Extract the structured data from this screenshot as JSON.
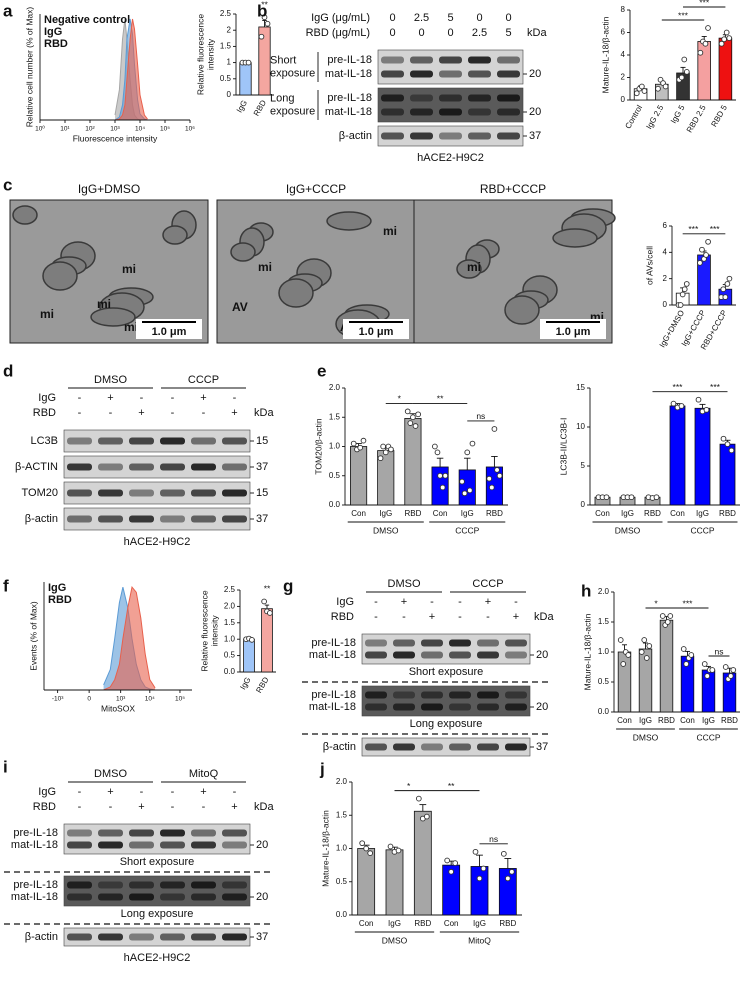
{
  "chart_data": [
    {
      "type": "area",
      "panel": "a",
      "xscale": "log",
      "ylabel": "Relative cell number (% of Max)",
      "xlabel": "Fluorescence intensity",
      "legend": "upper left",
      "x": [
        1000,
        1500,
        2000,
        2500,
        3000,
        4000,
        5000,
        6000,
        8000,
        10000,
        15000,
        20000
      ],
      "series": [
        {
          "name": "Negative control",
          "color": "#a6a6a6",
          "values": [
            5,
            30,
            80,
            100,
            80,
            40,
            15,
            5,
            1,
            0,
            0,
            0
          ]
        },
        {
          "name": "IgG",
          "color": "#5b9bd5",
          "values": [
            0,
            3,
            15,
            40,
            80,
            100,
            85,
            55,
            20,
            6,
            1,
            0
          ]
        },
        {
          "name": "RBD",
          "color": "#e8604c",
          "values": [
            0,
            1,
            5,
            15,
            40,
            80,
            100,
            90,
            55,
            25,
            5,
            1
          ]
        }
      ],
      "xlim": [
        1,
        1000000
      ],
      "xticks": [
        {
          "value": 1,
          "label": "10⁰"
        },
        {
          "value": 10,
          "label": "10¹"
        },
        {
          "value": 100,
          "label": "10²"
        },
        {
          "value": 1000,
          "label": "10³"
        },
        {
          "value": 10000,
          "label": "10⁴"
        },
        {
          "value": 100000,
          "label": "10⁵"
        },
        {
          "value": 1000000,
          "label": "10⁶"
        }
      ],
      "ylim": [
        0,
        105
      ]
    },
    {
      "type": "bar",
      "ylabel": [
        "Relative fluorescence",
        "intensity"
      ],
      "categories": [
        "IgG",
        "RBD"
      ],
      "values": [
        1.0,
        2.1
      ],
      "errors": [
        0.02,
        0.2
      ],
      "points": [
        [
          1,
          1,
          1
        ],
        [
          1.8,
          2.4,
          2.2
        ]
      ],
      "colors": [
        "#9fc5f8",
        "#f4a6a0"
      ],
      "ylim": [
        0,
        2.5
      ],
      "yticks": [
        0,
        0.5,
        1,
        1.5,
        2,
        2.5
      ],
      "significance": [
        {
          "label": "**",
          "between": [
            1,
            1
          ]
        }
      ]
    },
    {
      "type": "bar",
      "ylabel": "Mature-IL-18/β-actin",
      "categories": [
        "Control",
        "IgG 2.5",
        "IgG 5",
        "RBD 2.5",
        "RBD 5"
      ],
      "values": [
        1.0,
        1.4,
        2.4,
        5.2,
        5.5
      ],
      "errors": [
        0.25,
        0.3,
        0.5,
        0.45,
        0.3
      ],
      "points": [
        [
          0.6,
          1.0,
          1.2,
          0.8
        ],
        [
          1.0,
          1.8,
          1.5,
          1.2
        ],
        [
          1.8,
          2.0,
          3.6,
          2.5
        ],
        [
          4.2,
          5.2,
          5.0,
          6.4
        ],
        [
          5.0,
          5.4,
          6.0,
          5.5
        ]
      ],
      "colors": [
        "#ffffff",
        "#bfbfbf",
        "#333333",
        "#f4a0a0",
        "#ee1111"
      ],
      "ylim": [
        0,
        8
      ],
      "yticks": [
        0,
        2,
        4,
        6,
        8
      ],
      "significance": [
        {
          "label": "***",
          "between": [
            1,
            3
          ]
        },
        {
          "label": "***",
          "between": [
            2,
            4
          ]
        }
      ]
    },
    {
      "type": "bar",
      "ylabel": "of AVs/cell",
      "categories": [
        "IgG+DMSO",
        "IgG+CCCP",
        "RBD+CCCP"
      ],
      "values": [
        0.9,
        3.8,
        1.2
      ],
      "errors": [
        0.4,
        0.3,
        0.35
      ],
      "points": [
        [
          0,
          0,
          0.8,
          1.2,
          1.6
        ],
        [
          3.2,
          4.2,
          3.5,
          3.8,
          4.8
        ],
        [
          0.6,
          1.2,
          0.6,
          1.6,
          2.0
        ]
      ],
      "colors": [
        "#ffffff",
        "#1a1aff",
        "#1a1aff"
      ],
      "ylim": [
        0,
        6
      ],
      "yticks": [
        0,
        2,
        4,
        6
      ],
      "significance": [
        {
          "label": "***",
          "between": [
            0,
            1
          ]
        },
        {
          "label": "***",
          "between": [
            1,
            2
          ]
        }
      ]
    },
    {
      "type": "bar",
      "panel": "e",
      "ylabel": "TOM20/β-actin",
      "categories": [
        "Con",
        "IgG",
        "RBD",
        "Con",
        "IgG",
        "RBD"
      ],
      "values": [
        1.0,
        0.93,
        1.48,
        0.65,
        0.6,
        0.65
      ],
      "errors": [
        0.05,
        0.07,
        0.08,
        0.15,
        0.2,
        0.18
      ],
      "points": [
        [
          1.05,
          0.95,
          0.98,
          1.1
        ],
        [
          0.8,
          1.0,
          0.9,
          1.0,
          0.95
        ],
        [
          1.6,
          1.4,
          1.5,
          1.35,
          1.55
        ],
        [
          1.0,
          0.9,
          0.5,
          0.3,
          0.5
        ],
        [
          0.4,
          0.2,
          0.9,
          0.25,
          1.05
        ],
        [
          0.45,
          0.3,
          1.3,
          0.6,
          0.5
        ]
      ],
      "colors": [
        "#a6a6a6",
        "#a6a6a6",
        "#a6a6a6",
        "#0000ff",
        "#0000ff",
        "#0000ff"
      ],
      "ylim": [
        0,
        2.0
      ],
      "yticks": [
        {
          "value": 0,
          "label": "0.0"
        },
        0.5,
        {
          "value": 1,
          "label": "1.0"
        },
        1.5,
        {
          "value": 2,
          "label": "2.0"
        }
      ],
      "groups": [
        {
          "label": "DMSO",
          "size": 3
        },
        {
          "label": "CCCP",
          "size": 3
        }
      ],
      "significance": [
        {
          "label": "*",
          "between": [
            1,
            2
          ]
        },
        {
          "label": "**",
          "between": [
            2,
            4
          ]
        },
        {
          "label": "ns",
          "between": [
            4,
            5
          ]
        }
      ]
    },
    {
      "type": "bar",
      "ylabel": "LC3B-II/LC3B-I",
      "categories": [
        "Con",
        "IgG",
        "RBD",
        "Con",
        "IgG",
        "RBD"
      ],
      "values": [
        1.0,
        1.0,
        1.0,
        12.7,
        12.4,
        7.8
      ],
      "errors": [
        0.1,
        0.1,
        0.1,
        0.3,
        0.5,
        0.5
      ],
      "points": [
        [
          1,
          1,
          1
        ],
        [
          1,
          1,
          1
        ],
        [
          1,
          0.9,
          1
        ],
        [
          13,
          12.5,
          12.7
        ],
        [
          13.5,
          12,
          12.2
        ],
        [
          8.5,
          7.8,
          7.0
        ]
      ],
      "colors": [
        "#a6a6a6",
        "#a6a6a6",
        "#a6a6a6",
        "#0000ff",
        "#0000ff",
        "#0000ff"
      ],
      "ylim": [
        0,
        15
      ],
      "yticks": [
        0,
        5,
        10,
        15
      ],
      "groups": [
        {
          "label": "DMSO",
          "size": 3
        },
        {
          "label": "CCCP",
          "size": 3
        }
      ],
      "significance": [
        {
          "label": "***",
          "between": [
            2,
            4
          ]
        },
        {
          "label": "***",
          "between": [
            4,
            5
          ]
        }
      ]
    },
    {
      "type": "area",
      "panel": "f",
      "xscale": "symlog",
      "ylabel": "Events (% of Max)",
      "xlabel": "MitoSOX",
      "legend": "upper left",
      "x": [
        200,
        400,
        600,
        900,
        1200,
        1800,
        2500,
        3500,
        5000,
        7000,
        10000,
        15000
      ],
      "series": [
        {
          "name": "IgG",
          "color": "#5b9bd5",
          "values": [
            5,
            20,
            50,
            85,
            100,
            80,
            50,
            25,
            10,
            3,
            1,
            0
          ]
        },
        {
          "name": "RBD",
          "color": "#e8604c",
          "values": [
            0,
            3,
            10,
            25,
            50,
            80,
            100,
            95,
            70,
            35,
            10,
            2
          ]
        }
      ],
      "xlim": [
        -3000,
        250000
      ],
      "xticks": [
        {
          "value": -1000,
          "label": "-10³"
        },
        0,
        {
          "value": 1000,
          "label": "10³"
        },
        {
          "value": 10000,
          "label": "10⁴"
        },
        {
          "value": 100000,
          "label": "10⁵"
        }
      ],
      "ylim": [
        0,
        105
      ]
    },
    {
      "type": "bar",
      "ylabel": [
        "Relative fluorescence",
        "intensity"
      ],
      "categories": [
        "IgG",
        "RBD"
      ],
      "values": [
        1.0,
        1.93
      ],
      "errors": [
        0.01,
        0.11
      ],
      "points": [
        [
          1,
          1.02,
          0.98
        ],
        [
          2.15,
          1.85,
          1.8
        ]
      ],
      "colors": [
        "#9fc5f8",
        "#f4a6a0"
      ],
      "ylim": [
        0,
        2.5
      ],
      "yticks": [
        {
          "value": 0,
          "label": "0.0"
        },
        0.5,
        {
          "value": 1,
          "label": "1.0"
        },
        1.5,
        {
          "value": 2,
          "label": "2.0"
        },
        2.5
      ],
      "significance": [
        {
          "label": "**",
          "between": [
            1,
            1
          ]
        }
      ]
    },
    {
      "type": "bar",
      "panel": "h",
      "ylabel": "Mature-IL-18/β-actin",
      "categories": [
        "Con",
        "IgG",
        "RBD",
        "Con",
        "IgG",
        "RBD"
      ],
      "values": [
        1.0,
        1.05,
        1.53,
        0.93,
        0.7,
        0.65
      ],
      "errors": [
        0.12,
        0.1,
        0.06,
        0.08,
        0.06,
        0.08
      ],
      "points": [
        [
          1.2,
          0.8,
          1.0,
          0.95
        ],
        [
          1.0,
          1.2,
          0.9,
          1.1
        ],
        [
          1.6,
          1.45,
          1.5,
          1.6
        ],
        [
          1.05,
          0.8,
          0.9,
          0.95
        ],
        [
          0.8,
          0.6,
          0.7,
          0.7
        ],
        [
          0.75,
          0.55,
          0.6,
          0.7
        ]
      ],
      "colors": [
        "#a6a6a6",
        "#a6a6a6",
        "#a6a6a6",
        "#0000ff",
        "#0000ff",
        "#0000ff"
      ],
      "ylim": [
        0,
        2.0
      ],
      "yticks": [
        {
          "value": 0,
          "label": "0.0"
        },
        0.5,
        {
          "value": 1,
          "label": "1.0"
        },
        1.5,
        {
          "value": 2,
          "label": "2.0"
        }
      ],
      "groups": [
        {
          "label": "DMSO",
          "size": 3
        },
        {
          "label": "CCCP",
          "size": 3
        }
      ],
      "significance": [
        {
          "label": "*",
          "between": [
            1,
            2
          ]
        },
        {
          "label": "***",
          "between": [
            2,
            4
          ]
        },
        {
          "label": "ns",
          "between": [
            4,
            5
          ]
        }
      ]
    },
    {
      "type": "bar",
      "panel": "j",
      "ylabel": "Mature-IL-18/β-actin",
      "categories": [
        "Con",
        "IgG",
        "RBD",
        "Con",
        "IgG",
        "RBD"
      ],
      "values": [
        1.0,
        0.98,
        1.56,
        0.75,
        0.73,
        0.7
      ],
      "errors": [
        0.05,
        0.04,
        0.1,
        0.06,
        0.17,
        0.15
      ],
      "points": [
        [
          1.08,
          1.0,
          0.93
        ],
        [
          1.03,
          0.95,
          0.97
        ],
        [
          1.75,
          1.45,
          1.48
        ],
        [
          0.82,
          0.65,
          0.78
        ],
        [
          0.95,
          0.55,
          0.7
        ],
        [
          0.92,
          0.55,
          0.65
        ]
      ],
      "colors": [
        "#a6a6a6",
        "#a6a6a6",
        "#a6a6a6",
        "#0000ff",
        "#0000ff",
        "#0000ff"
      ],
      "ylim": [
        0,
        2.0
      ],
      "yticks": [
        {
          "value": 0,
          "label": "0.0"
        },
        0.5,
        {
          "value": 1,
          "label": "1.0"
        },
        1.5,
        {
          "value": 2,
          "label": "2.0"
        }
      ],
      "groups": [
        {
          "label": "DMSO",
          "size": 3
        },
        {
          "label": "MitoQ",
          "size": 3
        }
      ],
      "significance": [
        {
          "label": "*",
          "between": [
            1,
            2
          ]
        },
        {
          "label": "**",
          "between": [
            2,
            4
          ]
        },
        {
          "label": "ns",
          "between": [
            4,
            5
          ]
        }
      ]
    }
  ],
  "blots": [
    {
      "panel": "b",
      "conditions": [
        {
          "label": "IgG (μg/mL)",
          "values": [
            "0",
            "2.5",
            "5",
            "0",
            "0"
          ]
        },
        {
          "label": "RBD (μg/mL)",
          "values": [
            "0",
            "0",
            "0",
            "2.5",
            "5"
          ]
        }
      ],
      "unit": "kDa",
      "rows": [
        {
          "group": [
            "Short",
            "exposure"
          ],
          "bands": [
            "pre-IL-18",
            "mat-IL-18"
          ],
          "marker": "20"
        },
        {
          "group": [
            "Long",
            "exposure"
          ],
          "bands": [
            "pre-IL-18",
            "mat-IL-18"
          ],
          "marker": "20"
        },
        {
          "bands": [
            "β-actin"
          ],
          "marker": "37"
        }
      ],
      "caption": "hACE2-H9C2"
    },
    {
      "panel": "d",
      "headers": [
        "DMSO",
        "CCCP"
      ],
      "conditions": [
        {
          "label": "IgG",
          "values": [
            "-",
            "+",
            "-",
            "-",
            "+",
            "-"
          ]
        },
        {
          "label": "RBD",
          "values": [
            "-",
            "-",
            "+",
            "-",
            "-",
            "+"
          ]
        }
      ],
      "unit": "kDa",
      "rows": [
        {
          "bands": [
            "LC3B"
          ],
          "marker": "15"
        },
        {
          "bands": [
            "β-ACTIN"
          ],
          "marker": "37"
        },
        {
          "bands": [
            "TOM20"
          ],
          "marker": "15"
        },
        {
          "bands": [
            "β-actin"
          ],
          "marker": "37"
        }
      ],
      "caption": "hACE2-H9C2"
    },
    {
      "panel": "g",
      "headers": [
        "DMSO",
        "CCCP"
      ],
      "conditions": [
        {
          "label": "IgG",
          "values": [
            "-",
            "+",
            "-",
            "-",
            "+",
            "-"
          ]
        },
        {
          "label": "RBD",
          "values": [
            "-",
            "-",
            "+",
            "-",
            "-",
            "+"
          ]
        }
      ],
      "unit": "kDa",
      "rows": [
        {
          "bands": [
            "pre-IL-18",
            "mat-IL-18"
          ],
          "marker": "20",
          "note": "Short exposure"
        },
        {
          "bands": [
            "pre-IL-18",
            "mat-IL-18"
          ],
          "marker": "20",
          "note": "Long exposure"
        },
        {
          "bands": [
            "β-actin"
          ],
          "marker": "37"
        }
      ]
    },
    {
      "panel": "i",
      "headers": [
        "DMSO",
        "MitoQ"
      ],
      "conditions": [
        {
          "label": "IgG",
          "values": [
            "-",
            "+",
            "-",
            "-",
            "+",
            "-"
          ]
        },
        {
          "label": "RBD",
          "values": [
            "-",
            "-",
            "+",
            "-",
            "-",
            "+"
          ]
        }
      ],
      "unit": "kDa",
      "rows": [
        {
          "bands": [
            "pre-IL-18",
            "mat-IL-18"
          ],
          "marker": "20",
          "note": "Short exposure"
        },
        {
          "bands": [
            "pre-IL-18",
            "mat-IL-18"
          ],
          "marker": "20",
          "note": "Long exposure"
        },
        {
          "bands": [
            "β-actin"
          ],
          "marker": "37"
        }
      ],
      "caption": "hACE2-H9C2"
    }
  ],
  "micrographs": {
    "panel": "c",
    "images": [
      {
        "title": "IgG+DMSO",
        "labels": [
          "mi",
          "mi",
          "mi",
          "mi"
        ],
        "scale": "1.0 μm"
      },
      {
        "title": "IgG+CCCP",
        "labels": [
          "mi",
          "mi",
          "AV",
          "AV"
        ],
        "scale": "1.0 μm"
      },
      {
        "title": "RBD+CCCP",
        "labels": [
          "mi",
          "mi"
        ],
        "scale": "1.0 μm"
      }
    ]
  }
}
